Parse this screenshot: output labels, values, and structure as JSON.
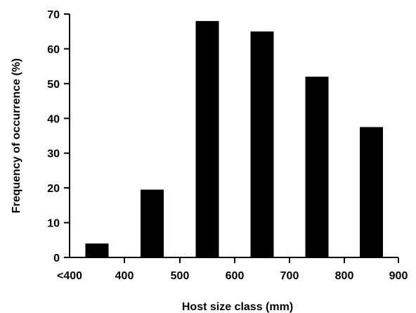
{
  "chart_data": {
    "type": "bar",
    "title": "",
    "xlabel": "Host size class (mm)",
    "ylabel": "Frequency of occurrence (%)",
    "x_tick_labels": [
      "<400",
      "400",
      "500",
      "600",
      "700",
      "800",
      "900"
    ],
    "y_ticks": [
      0,
      10,
      20,
      30,
      40,
      50,
      60,
      70
    ],
    "ylim": [
      0,
      70
    ],
    "grid": false,
    "legend": "none",
    "categories": [
      "<400",
      "400-500",
      "500-600",
      "600-700",
      "700-800",
      "800-900"
    ],
    "values": [
      4,
      19.5,
      68,
      65,
      52,
      37.5
    ],
    "bar_color": "#000000"
  }
}
